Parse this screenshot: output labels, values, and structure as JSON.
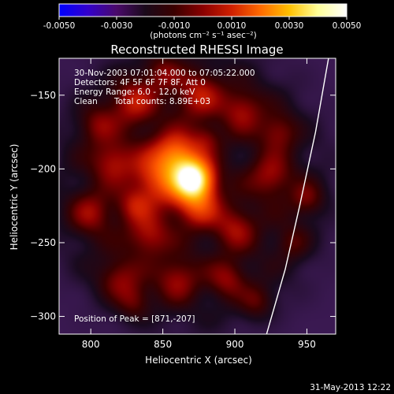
{
  "colorbar": {
    "tick_labels": [
      "-0.0050",
      "-0.0030",
      "-0.0010",
      "0.0010",
      "0.0030",
      "0.0050"
    ],
    "range": [
      -0.005,
      0.005
    ],
    "unit_label": "(photons cm⁻² s⁻¹ asec⁻²)",
    "colors": [
      "#0000ff",
      "#3300cc",
      "#4a0a6a",
      "#1a0a1a",
      "#3a0000",
      "#8a0000",
      "#d02000",
      "#ff6a00",
      "#ffc000",
      "#ffff99",
      "#ffffff"
    ]
  },
  "info": {
    "time_range": "30-Nov-2003 07:01:04.000 to 07:05:22.000",
    "detectors": "Detectors: 4F 5F 6F 7F 8F, Att 0",
    "energy": "Energy Range: 6.0 - 12.0 keV",
    "method": "Clean",
    "total_counts": "Total counts: 8.89E+03",
    "peak": "Position of Peak = [871,-207]"
  },
  "footer_date": "31-May-2013 12:22",
  "chart_data": {
    "type": "heatmap",
    "title": "Reconstructed RHESSI Image",
    "xlabel": "Heliocentric X (arcsec)",
    "ylabel": "Heliocentric Y (arcsec)",
    "xlim": [
      778,
      970
    ],
    "ylim": [
      -312,
      -125
    ],
    "xticks": [
      800,
      850,
      900,
      950
    ],
    "yticks": [
      -150,
      -200,
      -250,
      -300
    ],
    "peak": {
      "x": 871,
      "y": -207,
      "value": 0.005
    },
    "background_level": -0.0005,
    "sources": [
      {
        "x": 871,
        "y": -207,
        "sigma": 9,
        "value": 0.005
      },
      {
        "x": 850,
        "y": -205,
        "sigma": 14,
        "value": 0.002
      },
      {
        "x": 860,
        "y": -190,
        "sigma": 10,
        "value": 0.0018
      },
      {
        "x": 875,
        "y": -225,
        "sigma": 10,
        "value": 0.0016
      },
      {
        "x": 830,
        "y": -155,
        "sigma": 11,
        "value": 0.0012
      },
      {
        "x": 875,
        "y": -150,
        "sigma": 11,
        "value": 0.0012
      },
      {
        "x": 905,
        "y": -160,
        "sigma": 10,
        "value": 0.001
      },
      {
        "x": 815,
        "y": -195,
        "sigma": 10,
        "value": 0.0011
      },
      {
        "x": 800,
        "y": -230,
        "sigma": 10,
        "value": 0.001
      },
      {
        "x": 840,
        "y": -245,
        "sigma": 10,
        "value": 0.0011
      },
      {
        "x": 900,
        "y": -240,
        "sigma": 10,
        "value": 0.001
      },
      {
        "x": 925,
        "y": -205,
        "sigma": 10,
        "value": 0.001
      },
      {
        "x": 930,
        "y": -175,
        "sigma": 9,
        "value": 0.0009
      },
      {
        "x": 860,
        "y": -275,
        "sigma": 10,
        "value": 0.001
      },
      {
        "x": 895,
        "y": -275,
        "sigma": 9,
        "value": 0.0009
      },
      {
        "x": 820,
        "y": -275,
        "sigma": 10,
        "value": 0.0009
      },
      {
        "x": 805,
        "y": -170,
        "sigma": 9,
        "value": 0.0008
      },
      {
        "x": 850,
        "y": -135,
        "sigma": 9,
        "value": 0.0008
      },
      {
        "x": 950,
        "y": -220,
        "sigma": 8,
        "value": 0.0008
      },
      {
        "x": 830,
        "y": -290,
        "sigma": 8,
        "value": 0.0007
      },
      {
        "x": 915,
        "y": -290,
        "sigma": 8,
        "value": 0.0007
      },
      {
        "x": 940,
        "y": -250,
        "sigma": 8,
        "value": 0.0006
      },
      {
        "x": 880,
        "y": -180,
        "sigma": 7,
        "value": 0.0007
      },
      {
        "x": 830,
        "y": -225,
        "sigma": 8,
        "value": 0.0009
      }
    ],
    "limb": [
      {
        "x": 965,
        "y": -125
      },
      {
        "x": 956,
        "y": -175
      },
      {
        "x": 945,
        "y": -225
      },
      {
        "x": 935,
        "y": -268
      },
      {
        "x": 922,
        "y": -312
      }
    ]
  }
}
